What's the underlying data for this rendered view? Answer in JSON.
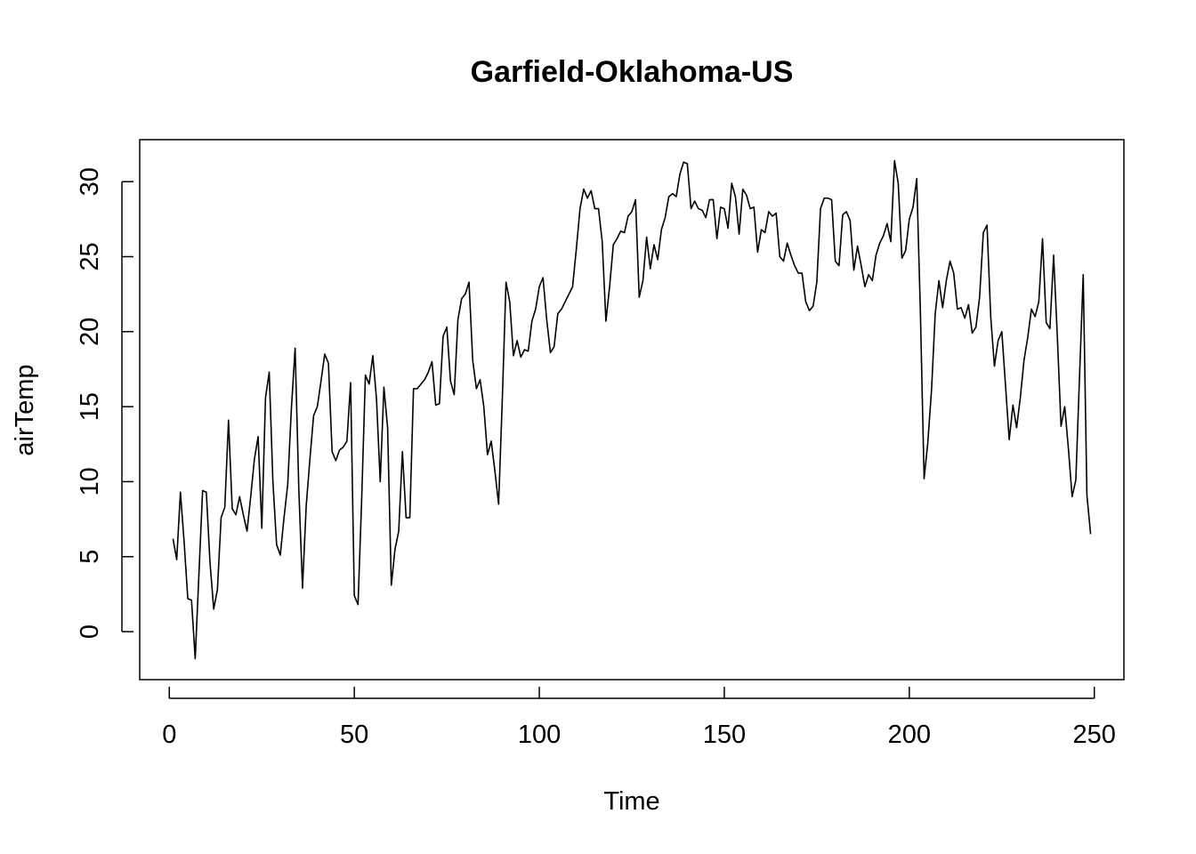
{
  "chart_data": {
    "type": "line",
    "title": "Garfield-Oklahoma-US",
    "xlabel": "Time",
    "ylabel": "airTemp",
    "xlim": [
      -8,
      258
    ],
    "ylim": [
      -3.2,
      32.8
    ],
    "x_ticks": [
      0,
      50,
      100,
      150,
      200,
      250
    ],
    "y_ticks": [
      0,
      5,
      10,
      15,
      20,
      25,
      30
    ],
    "grid": false,
    "colors": {
      "line": "#000000",
      "background": "#ffffff"
    },
    "series": [
      {
        "x_start": 1,
        "values": [
          6.2,
          4.8,
          9.3,
          6.0,
          2.2,
          2.1,
          -1.8,
          3.8,
          9.4,
          9.3,
          4.6,
          1.5,
          2.8,
          7.6,
          8.3,
          14.1,
          8.2,
          7.8,
          9.0,
          7.8,
          6.7,
          9.0,
          11.5,
          13.0,
          6.9,
          15.6,
          17.3,
          10.0,
          5.8,
          5.1,
          7.6,
          9.8,
          14.9,
          18.9,
          9.5,
          2.9,
          8.4,
          11.5,
          14.4,
          15.0,
          16.7,
          18.5,
          17.9,
          12.0,
          11.4,
          12.1,
          12.3,
          12.7,
          16.6,
          2.4,
          1.8,
          8.9,
          17.1,
          16.5,
          18.4,
          15.5,
          10.0,
          16.3,
          13.6,
          3.1,
          5.5,
          6.7,
          12.0,
          7.6,
          7.6,
          16.2,
          16.2,
          16.5,
          16.8,
          17.3,
          18.0,
          15.1,
          15.2,
          19.7,
          20.3,
          16.7,
          15.8,
          20.8,
          22.2,
          22.5,
          23.3,
          18.1,
          16.2,
          16.8,
          15.0,
          11.8,
          12.7,
          10.7,
          8.5,
          15.5,
          23.3,
          22.0,
          18.4,
          19.4,
          18.3,
          18.8,
          18.7,
          20.7,
          21.5,
          23.0,
          23.6,
          20.8,
          18.6,
          19.0,
          21.2,
          21.5,
          22.0,
          22.5,
          23.0,
          25.5,
          28.2,
          29.5,
          28.9,
          29.4,
          28.2,
          28.2,
          26.0,
          20.7,
          23.0,
          25.8,
          26.2,
          26.7,
          26.6,
          27.7,
          28.0,
          28.8,
          22.3,
          23.4,
          26.3,
          24.2,
          25.8,
          24.8,
          26.8,
          27.6,
          29.0,
          29.2,
          29.0,
          30.5,
          31.3,
          31.2,
          28.2,
          28.7,
          28.2,
          28.1,
          27.6,
          28.8,
          28.8,
          26.2,
          28.3,
          28.2,
          26.9,
          29.9,
          29.0,
          26.5,
          29.5,
          29.1,
          28.2,
          28.3,
          25.3,
          26.8,
          26.6,
          28.0,
          27.7,
          27.9,
          25.0,
          24.7,
          25.9,
          25.1,
          24.4,
          23.9,
          23.9,
          22.0,
          21.4,
          21.7,
          23.3,
          28.2,
          28.9,
          28.9,
          28.8,
          24.7,
          24.4,
          27.8,
          28.0,
          27.4,
          24.1,
          25.7,
          24.4,
          23.0,
          23.8,
          23.4,
          25.1,
          25.9,
          26.4,
          27.2,
          26.0,
          31.4,
          29.9,
          24.9,
          25.4,
          27.5,
          28.3,
          30.2,
          21.2,
          10.2,
          12.6,
          16.1,
          21.2,
          23.4,
          21.6,
          23.4,
          24.7,
          23.9,
          21.5,
          21.6,
          20.9,
          21.8,
          19.9,
          20.3,
          22.3,
          26.6,
          27.1,
          21.0,
          17.7,
          19.4,
          20.0,
          16.4,
          12.8,
          15.1,
          13.6,
          15.6,
          18.1,
          19.6,
          21.5,
          21.0,
          22.0,
          26.2,
          20.6,
          20.2,
          25.1,
          19.7,
          13.7,
          15.0,
          12.2,
          9.0,
          10.1,
          17.0,
          23.8,
          9.1,
          6.5
        ]
      }
    ]
  }
}
